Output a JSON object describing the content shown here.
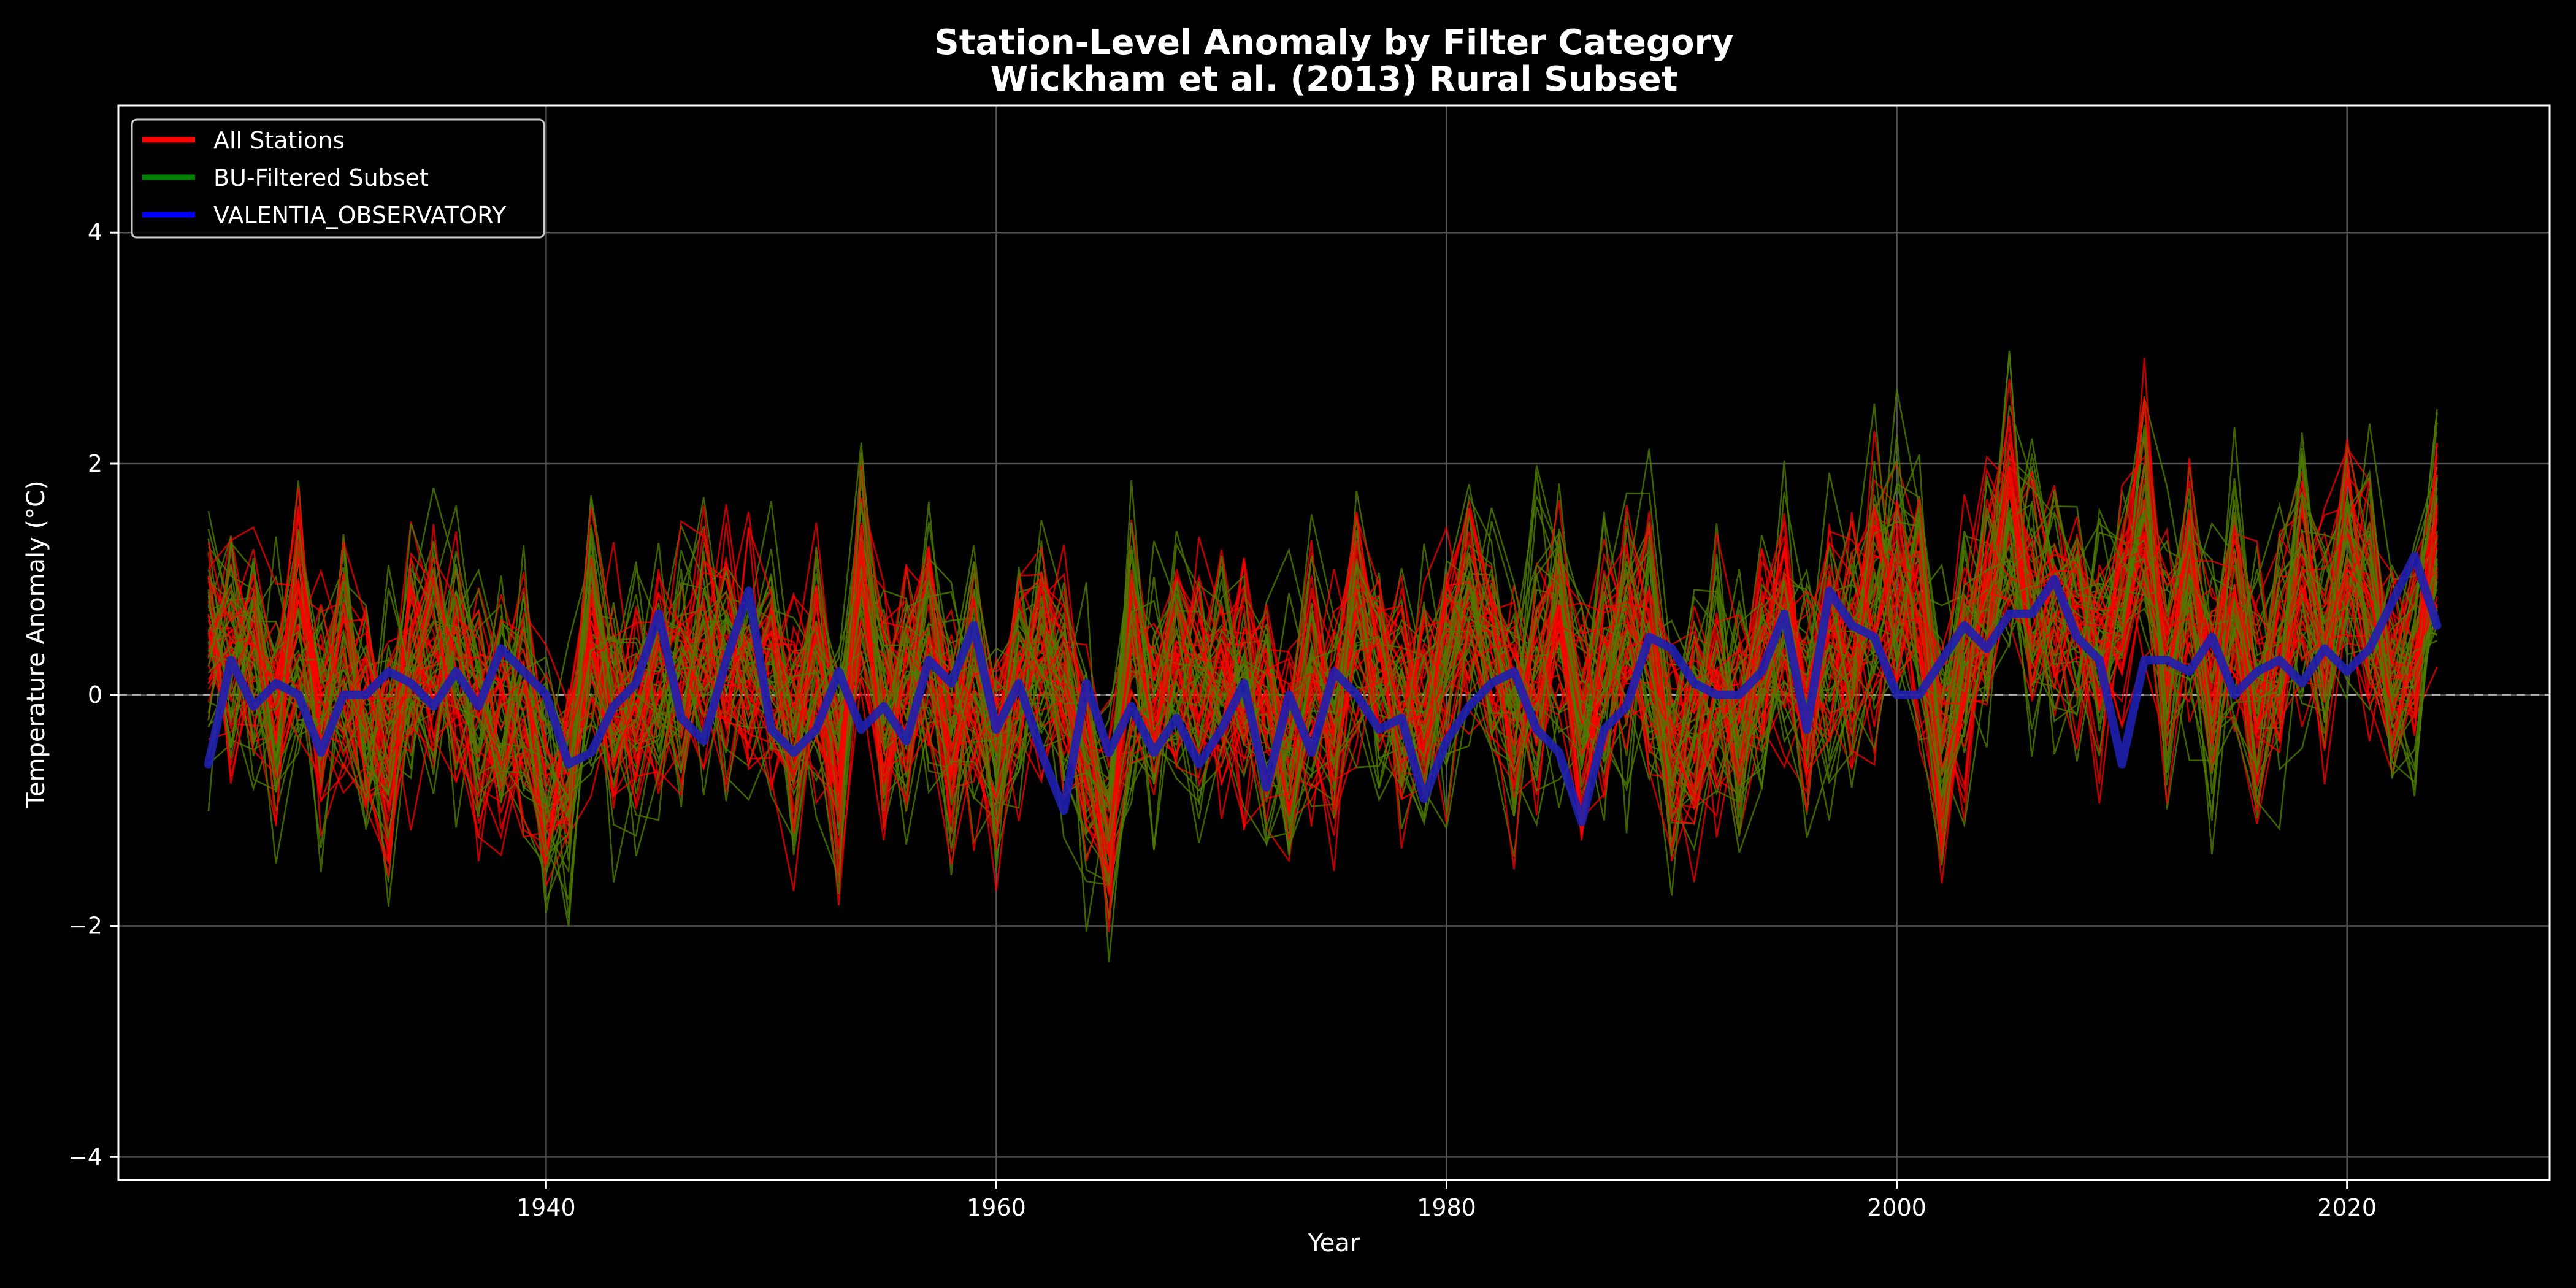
{
  "chart_data": {
    "type": "line",
    "title": "Station-Level Anomaly by Filter Category",
    "subtitle": "Wickham et al. (2013) Rural Subset",
    "xlabel": "Year",
    "ylabel": "Temperature Anomaly (°C)",
    "xlim": [
      1921,
      2029
    ],
    "ylim": [
      -4.2,
      5.1
    ],
    "xticks": [
      1940,
      1960,
      1980,
      2000,
      2020
    ],
    "yticks": [
      -4,
      -2,
      0,
      2,
      4
    ],
    "xtick_labels": [
      "1940",
      "1960",
      "1980",
      "2000",
      "2020"
    ],
    "ytick_labels": [
      "−4",
      "−2",
      "0",
      "2",
      "4"
    ],
    "grid": true,
    "zero_reference_line": 0,
    "legend_position": "top-left",
    "legend": {
      "entries": [
        {
          "name": "All Stations",
          "color": "#ff0000"
        },
        {
          "name": "BU-Filtered Subset",
          "color": "#008000"
        },
        {
          "name": "VALENTIA_OBSERVATORY",
          "color": "#0000ff"
        }
      ]
    },
    "colors": {
      "background": "#000000",
      "all_stations": "#ff0000",
      "bu_filtered": "#4d7a00",
      "valentia": "#1f1fb0",
      "grid": "#555555"
    },
    "series": [
      {
        "name": "VALENTIA_OBSERVATORY",
        "x": [
          1925,
          1926,
          1927,
          1928,
          1929,
          1930,
          1931,
          1932,
          1933,
          1934,
          1935,
          1936,
          1937,
          1938,
          1939,
          1940,
          1941,
          1942,
          1943,
          1944,
          1945,
          1946,
          1947,
          1948,
          1949,
          1950,
          1951,
          1952,
          1953,
          1954,
          1955,
          1956,
          1957,
          1958,
          1959,
          1960,
          1961,
          1962,
          1963,
          1964,
          1965,
          1966,
          1967,
          1968,
          1969,
          1970,
          1971,
          1972,
          1973,
          1974,
          1975,
          1976,
          1977,
          1978,
          1979,
          1980,
          1981,
          1982,
          1983,
          1984,
          1985,
          1986,
          1987,
          1988,
          1989,
          1990,
          1991,
          1992,
          1993,
          1994,
          1995,
          1996,
          1997,
          1998,
          1999,
          2000,
          2001,
          2002,
          2003,
          2004,
          2005,
          2006,
          2007,
          2008,
          2009,
          2010,
          2011,
          2012,
          2013,
          2014,
          2015,
          2016,
          2017,
          2018,
          2019,
          2020,
          2021,
          2022,
          2023,
          2024
        ],
        "y": [
          -0.6,
          0.3,
          -0.1,
          0.1,
          0.0,
          -0.5,
          0.0,
          0.0,
          0.2,
          0.1,
          -0.1,
          0.2,
          -0.1,
          0.4,
          0.2,
          0.0,
          -0.6,
          -0.5,
          -0.1,
          0.1,
          0.7,
          -0.2,
          -0.4,
          0.3,
          0.9,
          -0.3,
          -0.5,
          -0.3,
          0.2,
          -0.3,
          -0.1,
          -0.4,
          0.3,
          0.1,
          0.6,
          -0.3,
          0.1,
          -0.5,
          -1.0,
          0.1,
          -0.5,
          -0.1,
          -0.5,
          -0.2,
          -0.6,
          -0.3,
          0.1,
          -0.8,
          0.0,
          -0.5,
          0.2,
          0.0,
          -0.3,
          -0.2,
          -0.9,
          -0.4,
          -0.1,
          0.1,
          0.2,
          -0.3,
          -0.5,
          -1.1,
          -0.3,
          -0.1,
          0.5,
          0.4,
          0.1,
          0.0,
          0.0,
          0.2,
          0.7,
          -0.3,
          0.9,
          0.6,
          0.5,
          0.0,
          0.0,
          0.3,
          0.6,
          0.4,
          0.7,
          0.7,
          1.0,
          0.5,
          0.3,
          -0.6,
          0.3,
          0.3,
          0.2,
          0.5,
          0.0,
          0.2,
          0.3,
          0.1,
          0.4,
          0.2,
          0.4,
          0.8,
          1.2,
          0.6
        ]
      }
    ]
  }
}
